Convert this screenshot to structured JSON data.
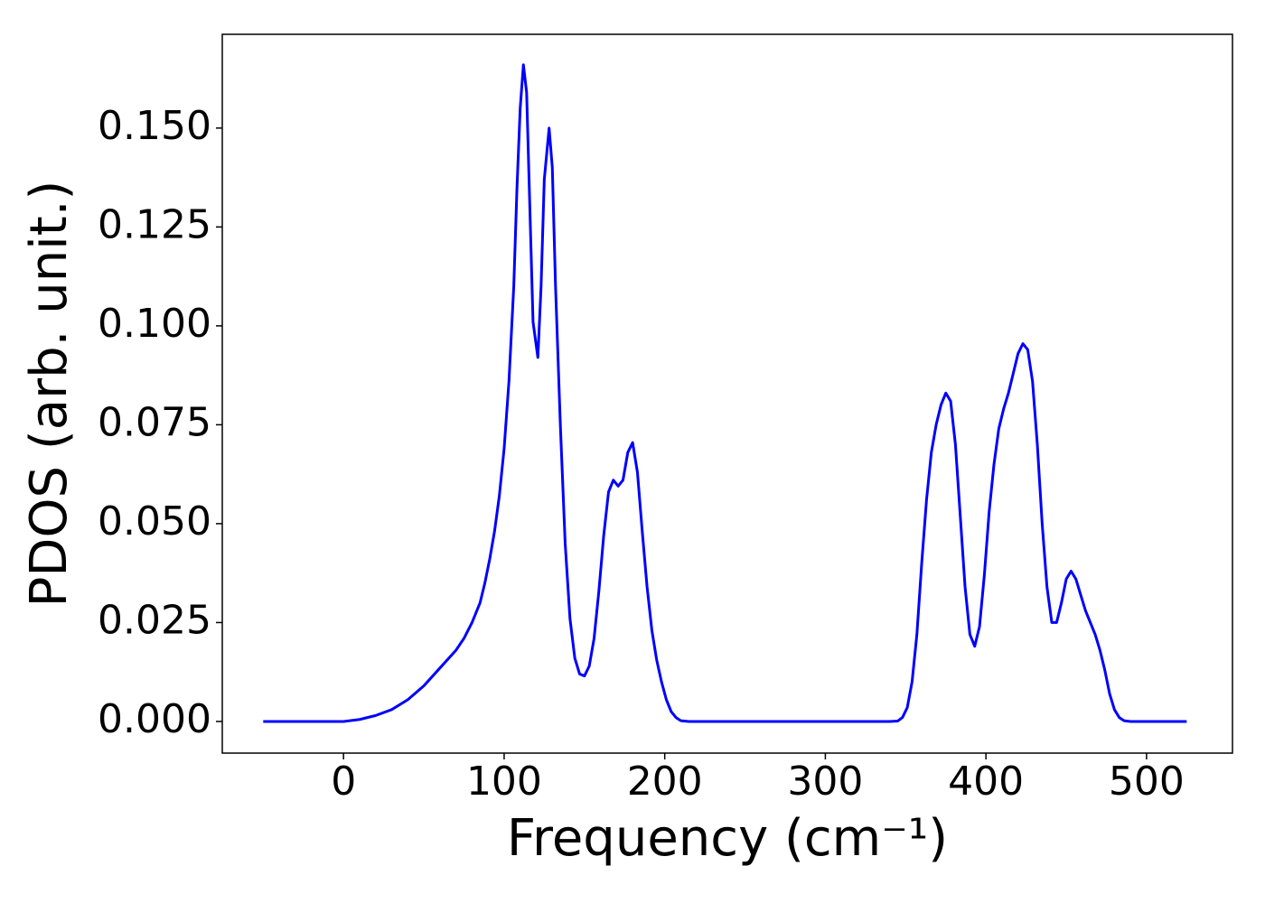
{
  "chart_data": {
    "type": "line",
    "xlabel": "Frequency (cm⁻¹)",
    "ylabel": "PDOS (arb. unit.)",
    "x": [
      -50,
      0,
      10,
      20,
      30,
      40,
      50,
      60,
      70,
      75,
      80,
      85,
      88,
      91,
      94,
      97,
      100,
      103,
      106,
      108,
      110,
      112,
      114,
      116,
      118,
      121,
      123,
      125,
      128,
      130,
      132,
      135,
      138,
      141,
      144,
      147,
      150,
      153,
      156,
      159,
      162,
      165,
      168,
      171,
      174,
      177,
      180,
      183,
      186,
      189,
      192,
      195,
      198,
      201,
      204,
      207,
      210,
      215,
      340,
      345,
      348,
      351,
      354,
      357,
      360,
      363,
      366,
      369,
      372,
      375,
      378,
      381,
      384,
      387,
      390,
      393,
      396,
      399,
      402,
      405,
      408,
      411,
      414,
      417,
      420,
      423,
      426,
      429,
      432,
      435,
      438,
      441,
      444,
      447,
      450,
      453,
      456,
      459,
      462,
      465,
      468,
      471,
      474,
      477,
      480,
      483,
      486,
      490,
      525
    ],
    "values": [
      0,
      0,
      0.0005,
      0.0015,
      0.003,
      0.0055,
      0.009,
      0.0135,
      0.018,
      0.021,
      0.025,
      0.03,
      0.035,
      0.041,
      0.048,
      0.057,
      0.069,
      0.086,
      0.11,
      0.135,
      0.155,
      0.166,
      0.159,
      0.13,
      0.101,
      0.092,
      0.11,
      0.137,
      0.15,
      0.14,
      0.11,
      0.075,
      0.045,
      0.026,
      0.016,
      0.012,
      0.0115,
      0.014,
      0.021,
      0.033,
      0.047,
      0.058,
      0.061,
      0.0595,
      0.061,
      0.068,
      0.0705,
      0.063,
      0.048,
      0.034,
      0.023,
      0.0155,
      0.01,
      0.0055,
      0.0025,
      0.001,
      0.0002,
      0,
      0,
      0.0001,
      0.001,
      0.0035,
      0.01,
      0.022,
      0.04,
      0.056,
      0.068,
      0.075,
      0.08,
      0.083,
      0.081,
      0.07,
      0.052,
      0.034,
      0.022,
      0.019,
      0.024,
      0.037,
      0.053,
      0.065,
      0.074,
      0.079,
      0.083,
      0.088,
      0.093,
      0.0955,
      0.094,
      0.086,
      0.07,
      0.05,
      0.034,
      0.025,
      0.025,
      0.03,
      0.036,
      0.038,
      0.036,
      0.032,
      0.028,
      0.025,
      0.022,
      0.018,
      0.013,
      0.007,
      0.003,
      0.001,
      0.0002,
      0,
      0
    ],
    "color": "#0000ff",
    "xlim": [
      -75.5,
      553.5
    ],
    "xticks": [
      0,
      100,
      200,
      300,
      400,
      500
    ],
    "ylim": [
      -0.008,
      0.1737
    ],
    "yticks": [
      {
        "value": 0,
        "label": "0.000"
      },
      {
        "value": 0.025,
        "label": "0.025"
      },
      {
        "value": 0.05,
        "label": "0.050"
      },
      {
        "value": 0.075,
        "label": "0.075"
      },
      {
        "value": 0.1,
        "label": "0.100"
      },
      {
        "value": 0.125,
        "label": "0.125"
      },
      {
        "value": 0.15,
        "label": "0.150"
      }
    ],
    "grid": false
  }
}
